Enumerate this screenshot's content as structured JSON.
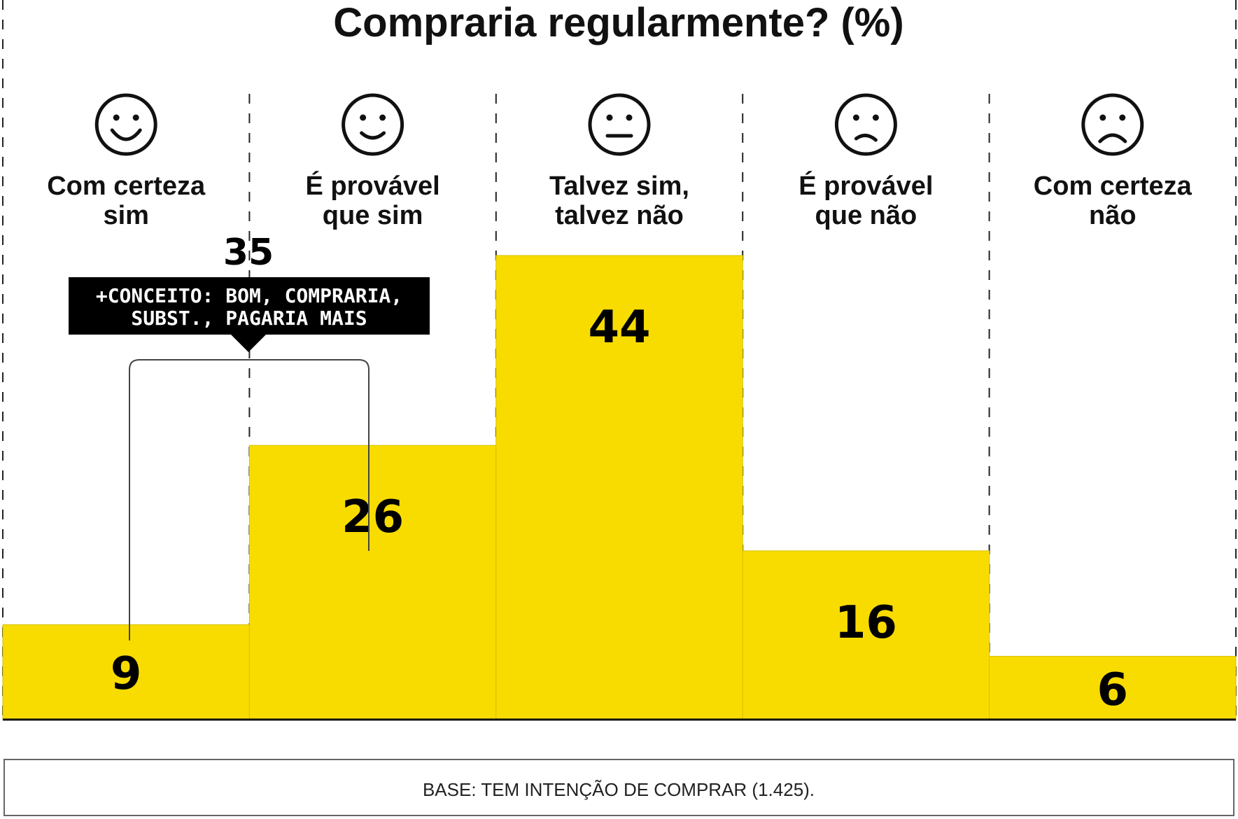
{
  "colors": {
    "bar": "#f8dc00",
    "ink": "#111111",
    "callout_bg": "#000000"
  },
  "chart_data": {
    "type": "bar",
    "title": "Compraria regularmente? (%)",
    "categories": [
      [
        "Com certeza",
        "sim"
      ],
      [
        "É provável",
        "que sim"
      ],
      [
        "Talvez sim,",
        "talvez não"
      ],
      [
        "É provável",
        "que não"
      ],
      [
        "Com certeza",
        "não"
      ]
    ],
    "icons": [
      "big-smile-face-icon",
      "smile-face-icon",
      "neutral-face-icon",
      "frown-face-icon",
      "sad-face-icon"
    ],
    "values": [
      9,
      26,
      44,
      16,
      6
    ],
    "ylim": [
      0,
      44
    ],
    "grid": true,
    "annotation": {
      "value": "35",
      "label_lines": [
        "+CONCEITO: BOM, COMPRARIA,",
        "SUBST., PAGARIA MAIS"
      ],
      "spans": [
        0,
        1
      ]
    },
    "footnote": "BASE: TEM INTENÇÃO DE COMPRAR (1.425)."
  }
}
